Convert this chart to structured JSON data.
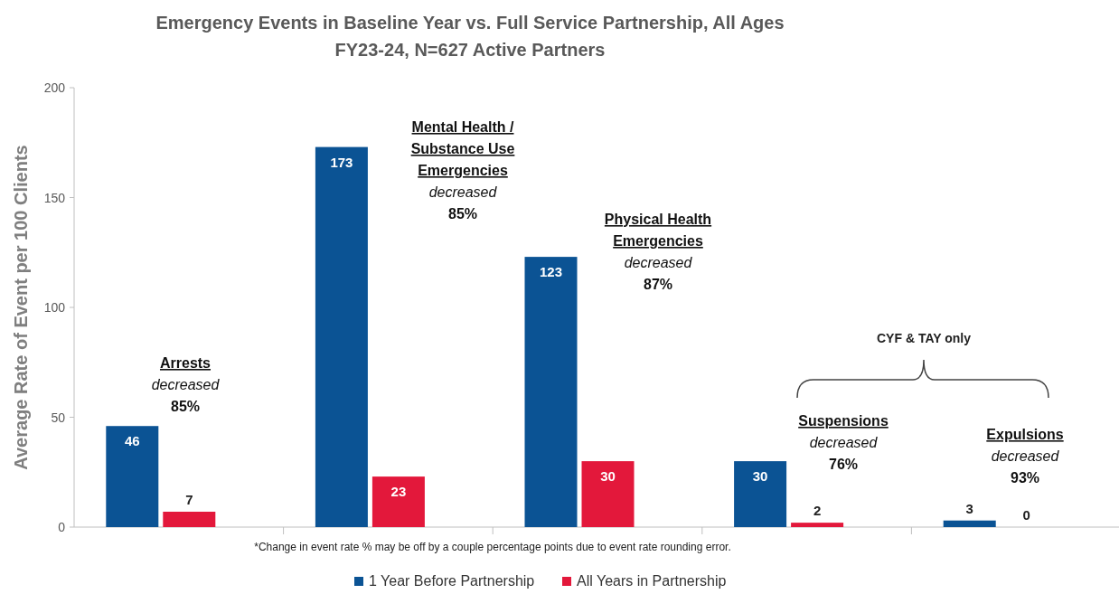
{
  "chart_data": {
    "type": "bar",
    "title": "Emergency Events in Baseline Year vs. Full Service Partnership, All Ages",
    "subtitle": "FY23-24, N=627 Active Partners",
    "ylabel": "Average Rate of Event per 100 Clients",
    "categories": [
      null,
      null,
      null,
      null,
      null
    ],
    "series": [
      {
        "name": "1 Year Before Partnership",
        "color": "#0b5394",
        "values": [
          46,
          173,
          123,
          30,
          3
        ]
      },
      {
        "name": "All Years in Partnership",
        "color": "#e3183b",
        "values": [
          7,
          23,
          30,
          2,
          0
        ]
      }
    ],
    "ylim": [
      0,
      200
    ],
    "yticks": [
      0,
      50,
      100,
      150,
      200
    ],
    "grid": false,
    "legend": "bottom",
    "data_labels": true,
    "annotations": [
      "Arrests\ndecreased\n85%",
      "Mental Health /\nSubstance Use\nEmergencies\ndecreased\n85%",
      "Physical Health\nEmergencies\ndecreased\n87%",
      "Suspensions\ndecreased\n76%",
      "Expulsions\ndecreased\n93%",
      "CYF & TAY only",
      "*Change in event rate % may be off by a couple percentage points due to event rate rounding error."
    ]
  }
}
